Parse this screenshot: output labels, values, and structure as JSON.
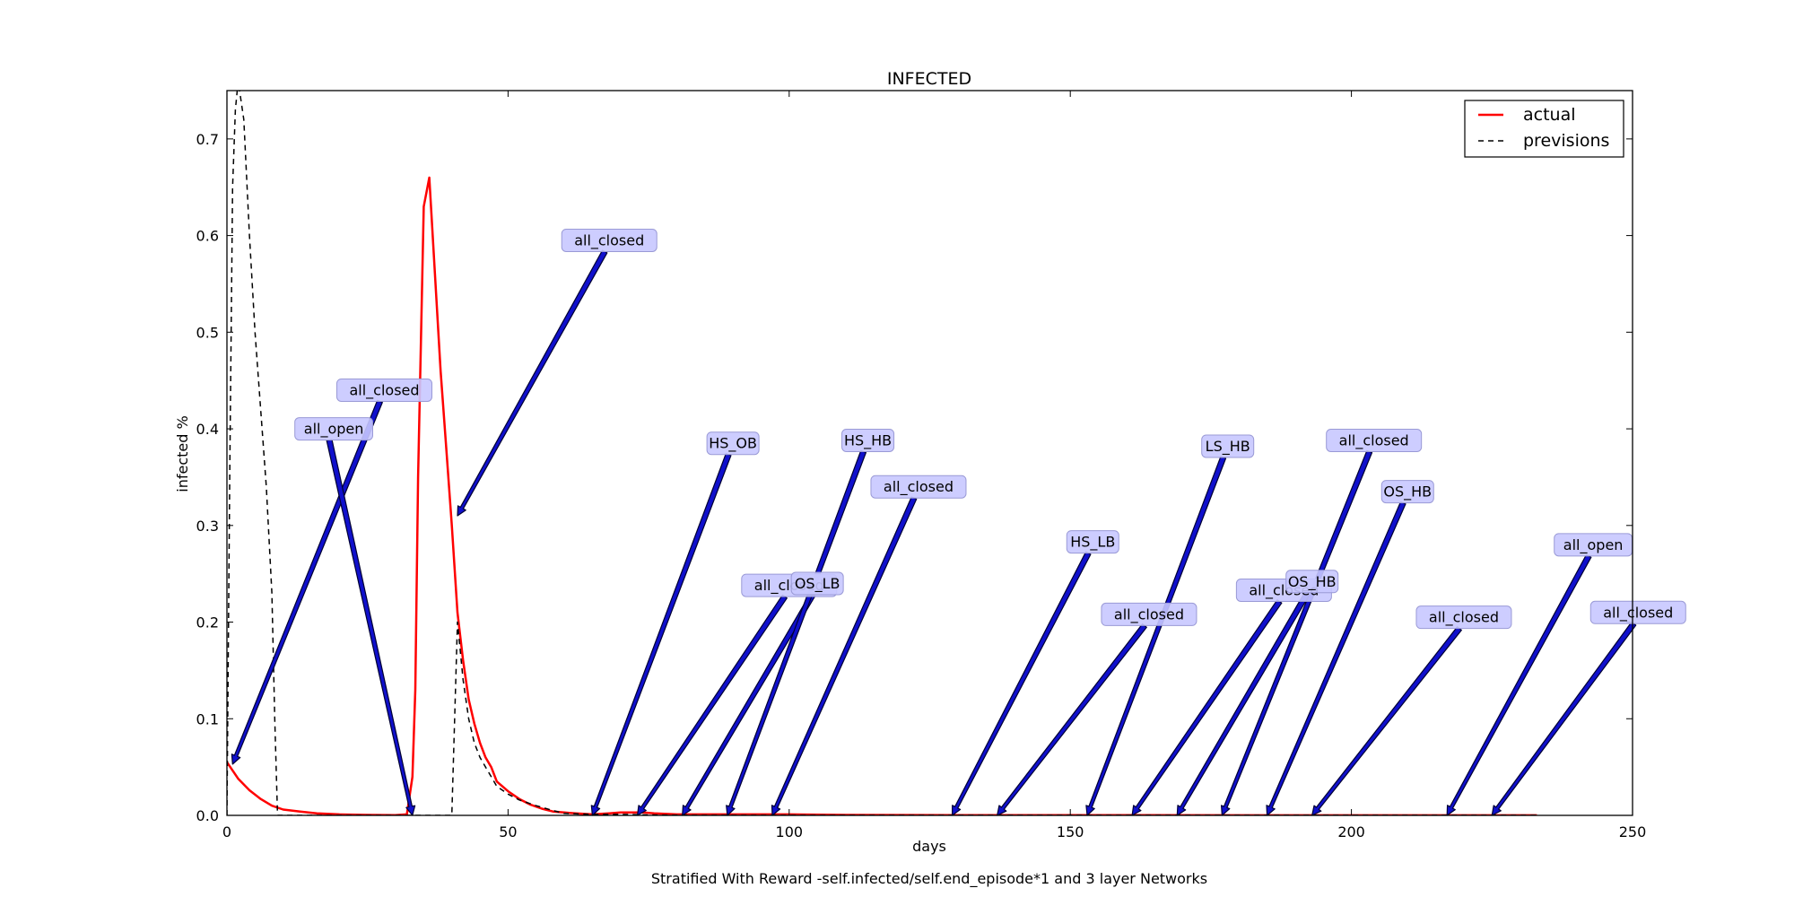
{
  "figure": {
    "caption": "Stratified With Reward -self.infected/self.end_episode*1 and 3 layer Networks"
  },
  "chart_data": {
    "type": "line",
    "title": "INFECTED",
    "xlabel": "days",
    "ylabel": "infected %",
    "xlim": [
      0,
      250
    ],
    "ylim": [
      0,
      0.75
    ],
    "xticks": [
      0,
      50,
      100,
      150,
      200,
      250
    ],
    "yticks": [
      0.0,
      0.1,
      0.2,
      0.3,
      0.4,
      0.5,
      0.6,
      0.7
    ],
    "grid": false,
    "legend_position": "top-right",
    "series": [
      {
        "name": "actual",
        "color": "#ff0000",
        "style": "solid",
        "points": [
          [
            0,
            0.055
          ],
          [
            2,
            0.038
          ],
          [
            4,
            0.026
          ],
          [
            6,
            0.017
          ],
          [
            8,
            0.01
          ],
          [
            10,
            0.006
          ],
          [
            13,
            0.004
          ],
          [
            16,
            0.002
          ],
          [
            20,
            0.001
          ],
          [
            25,
            0.0005
          ],
          [
            30,
            0.0003
          ],
          [
            32,
            0.001
          ],
          [
            33,
            0.04
          ],
          [
            33.5,
            0.13
          ],
          [
            34,
            0.35
          ],
          [
            35,
            0.63
          ],
          [
            36,
            0.66
          ],
          [
            37,
            0.56
          ],
          [
            38,
            0.46
          ],
          [
            39,
            0.38
          ],
          [
            40,
            0.3
          ],
          [
            41,
            0.21
          ],
          [
            42,
            0.16
          ],
          [
            43,
            0.12
          ],
          [
            44,
            0.095
          ],
          [
            45,
            0.075
          ],
          [
            46,
            0.06
          ],
          [
            47,
            0.05
          ],
          [
            48,
            0.035
          ],
          [
            50,
            0.025
          ],
          [
            52,
            0.017
          ],
          [
            54,
            0.011
          ],
          [
            56,
            0.007
          ],
          [
            58,
            0.004
          ],
          [
            60,
            0.003
          ],
          [
            62,
            0.002
          ],
          [
            65,
            0.001
          ],
          [
            68,
            0.002
          ],
          [
            70,
            0.003
          ],
          [
            72,
            0.003
          ],
          [
            74,
            0.003
          ],
          [
            76,
            0.002
          ],
          [
            80,
            0.001
          ],
          [
            85,
            0.001
          ],
          [
            90,
            0.001
          ],
          [
            100,
            0.001
          ],
          [
            110,
            0.0005
          ],
          [
            130,
            0.0003
          ],
          [
            160,
            0.0002
          ],
          [
            200,
            0.0001
          ],
          [
            233,
            0.0001
          ]
        ]
      },
      {
        "name": "previsions",
        "color": "#000000",
        "style": "dashed",
        "points": [
          [
            0,
            0.0
          ],
          [
            0.5,
            0.35
          ],
          [
            1,
            0.65
          ],
          [
            1.5,
            0.73
          ],
          [
            2,
            0.76
          ],
          [
            3,
            0.72
          ],
          [
            4,
            0.6
          ],
          [
            5,
            0.5
          ],
          [
            6,
            0.42
          ],
          [
            7,
            0.34
          ],
          [
            8,
            0.23
          ],
          [
            8.5,
            0.1
          ],
          [
            9,
            0.0
          ],
          [
            12,
            0.0
          ],
          [
            20,
            0.0
          ],
          [
            30,
            0.0
          ],
          [
            33,
            0.0
          ],
          [
            36,
            0.0
          ],
          [
            40,
            0.0
          ],
          [
            41,
            0.2
          ],
          [
            42,
            0.14
          ],
          [
            43,
            0.1
          ],
          [
            44,
            0.075
          ],
          [
            45,
            0.06
          ],
          [
            46,
            0.05
          ],
          [
            47,
            0.04
          ],
          [
            48,
            0.03
          ],
          [
            50,
            0.022
          ],
          [
            52,
            0.016
          ],
          [
            55,
            0.01
          ],
          [
            58,
            0.005
          ],
          [
            60,
            0.002
          ],
          [
            65,
            0.001
          ],
          [
            70,
            0.001
          ],
          [
            75,
            0.0005
          ],
          [
            80,
            0.0002
          ],
          [
            100,
            0.0001
          ],
          [
            233,
            0.0001
          ]
        ]
      }
    ],
    "annotations": [
      {
        "text": "all_closed",
        "xy": [
          1,
          0.053
        ],
        "xytext": [
          28,
          0.44
        ]
      },
      {
        "text": "all_open",
        "xy": [
          33,
          0.0
        ],
        "xytext": [
          19,
          0.4
        ]
      },
      {
        "text": "all_closed",
        "xy": [
          41,
          0.31
        ],
        "xytext": [
          68,
          0.595
        ]
      },
      {
        "text": "HS_OB",
        "xy": [
          65,
          0.0
        ],
        "xytext": [
          90,
          0.385
        ]
      },
      {
        "text": "all_closed",
        "xy": [
          73,
          0.0
        ],
        "xytext": [
          100,
          0.238
        ]
      },
      {
        "text": "OS_LB",
        "xy": [
          81,
          0.0
        ],
        "xytext": [
          105,
          0.24
        ]
      },
      {
        "text": "HS_HB",
        "xy": [
          89,
          0.0
        ],
        "xytext": [
          114,
          0.388
        ]
      },
      {
        "text": "all_closed",
        "xy": [
          97,
          0.0
        ],
        "xytext": [
          123,
          0.34
        ]
      },
      {
        "text": "HS_LB",
        "xy": [
          129,
          0.0
        ],
        "xytext": [
          154,
          0.283
        ]
      },
      {
        "text": "all_closed",
        "xy": [
          137,
          0.0
        ],
        "xytext": [
          164,
          0.208
        ]
      },
      {
        "text": "LS_HB",
        "xy": [
          153,
          0.0
        ],
        "xytext": [
          178,
          0.382
        ]
      },
      {
        "text": "all_closed",
        "xy": [
          161,
          0.0
        ],
        "xytext": [
          188,
          0.233
        ]
      },
      {
        "text": "OS_HB",
        "xy": [
          169,
          0.0
        ],
        "xytext": [
          193,
          0.242
        ]
      },
      {
        "text": "all_closed",
        "xy": [
          177,
          0.0
        ],
        "xytext": [
          204,
          0.388
        ]
      },
      {
        "text": "OS_HB",
        "xy": [
          185,
          0.0
        ],
        "xytext": [
          210,
          0.335
        ]
      },
      {
        "text": "all_closed",
        "xy": [
          193,
          0.0
        ],
        "xytext": [
          220,
          0.205
        ]
      },
      {
        "text": "all_open",
        "xy": [
          217,
          0.0
        ],
        "xytext": [
          243,
          0.28
        ]
      },
      {
        "text": "all_closed",
        "xy": [
          225,
          0.0
        ],
        "xytext": [
          251,
          0.21
        ]
      }
    ]
  }
}
